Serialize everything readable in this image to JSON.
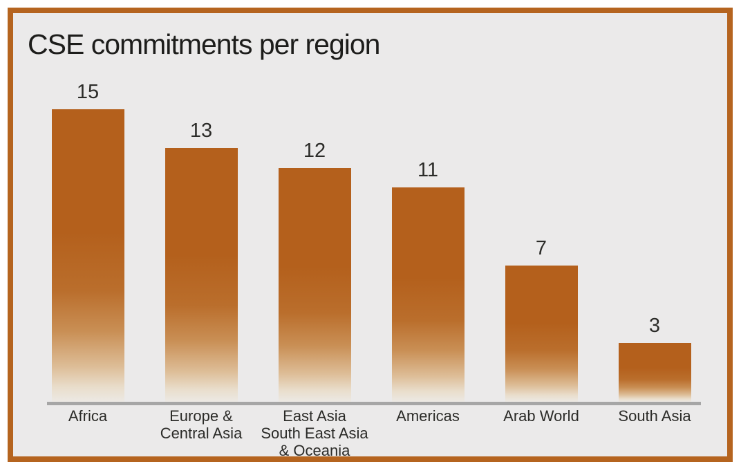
{
  "header": {
    "title": "CSE commitments per region"
  },
  "chart_data": {
    "type": "bar",
    "title": "CSE commitments per region",
    "categories": [
      "Africa",
      "Europe &\nCentral Asia",
      "East Asia\nSouth East Asia\n& Oceania",
      "Americas",
      "Arab World",
      "South Asia"
    ],
    "values": [
      15,
      13,
      12,
      11,
      7,
      3
    ],
    "value_labels": [
      "15",
      "13",
      "12",
      "11",
      "7",
      "3"
    ],
    "xlabel": "",
    "ylabel": "",
    "ylim": [
      0,
      15
    ],
    "grid": false,
    "legend": "none",
    "orientation": "vertical",
    "value_labels_shown": true
  },
  "colors": {
    "frame_border": "#b5641f",
    "chart_background": "#ebeaea",
    "bar_top": "#b4601c",
    "bar_fade_mid": "#c98f55",
    "bar_fade_bottom": "#ece9e4",
    "baseline": "#a6a6a6",
    "text": "#2b2b28",
    "title_text": "#1d1d1b"
  }
}
